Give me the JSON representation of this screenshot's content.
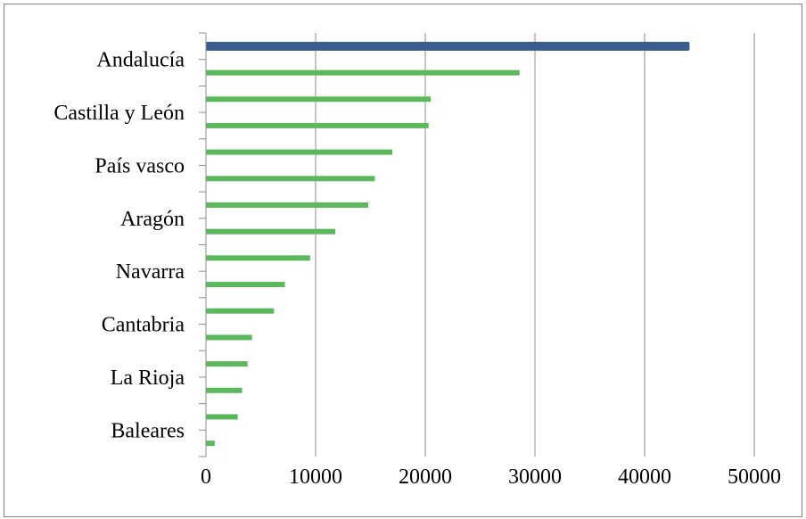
{
  "chart_data": {
    "type": "bar",
    "orientation": "horizontal",
    "title": "",
    "xlabel": "",
    "ylabel": "",
    "xlim": [
      0,
      50000
    ],
    "x_ticks": [
      0,
      10000,
      20000,
      30000,
      40000,
      50000
    ],
    "x_tick_labels": [
      "0",
      "10000",
      "20000",
      "30000",
      "40000",
      "50000"
    ],
    "grid": "vertical",
    "legend": "none",
    "y_labels_shown": [
      "Andalucía",
      "Castilla y León",
      "País vasco",
      "Aragón",
      "Navarra",
      "Cantabria",
      "La Rioja",
      "Baleares"
    ],
    "values_top_to_bottom": [
      44100,
      28600,
      20500,
      20300,
      17000,
      15400,
      14800,
      11800,
      9500,
      7200,
      6200,
      4200,
      3800,
      3300,
      2900,
      800
    ],
    "highlight_index": 0,
    "colors": {
      "highlight": "#3a5f8f",
      "bar": "#5cb85c",
      "grid": "#8c8c8c",
      "frame": "#7f7f7f",
      "text": "#000000"
    }
  }
}
